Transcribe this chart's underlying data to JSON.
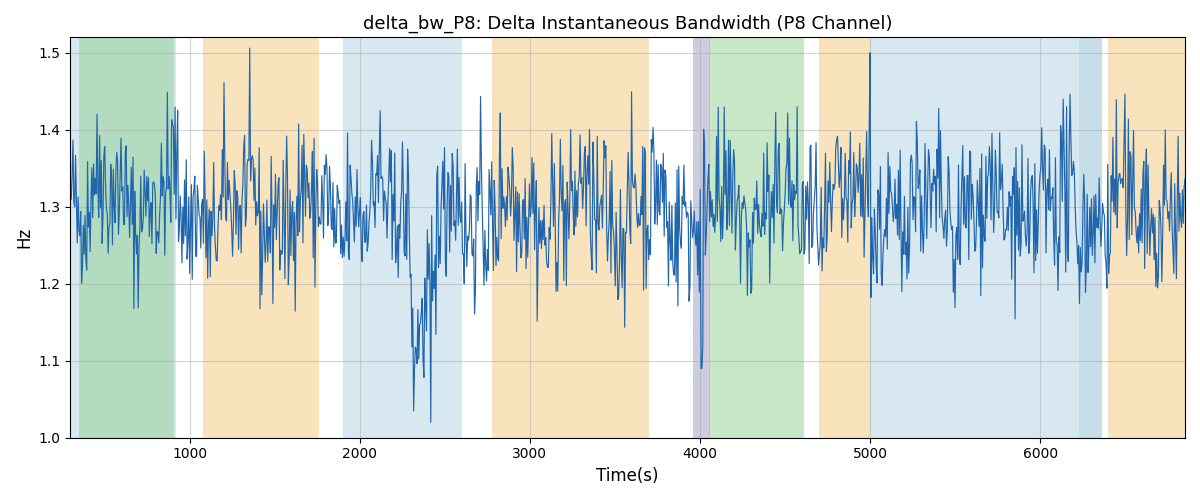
{
  "title": "delta_bw_P8: Delta Instantaneous Bandwidth (P8 Channel)",
  "xlabel": "Time(s)",
  "ylabel": "Hz",
  "xlim": [
    300,
    6850
  ],
  "ylim": [
    1.0,
    1.52
  ],
  "line_color": "#2166ac",
  "line_width": 0.85,
  "bg_bands": [
    {
      "xmin": 300,
      "xmax": 920,
      "color": "#a8cce0",
      "alpha": 0.45
    },
    {
      "xmin": 350,
      "xmax": 910,
      "color": "#90d090",
      "alpha": 0.5
    },
    {
      "xmin": 1080,
      "xmax": 1760,
      "color": "#f5c87a",
      "alpha": 0.5
    },
    {
      "xmin": 1900,
      "xmax": 2600,
      "color": "#a8cce0",
      "alpha": 0.45
    },
    {
      "xmin": 2600,
      "xmax": 2680,
      "color": "#ffffff",
      "alpha": 0.0
    },
    {
      "xmin": 2780,
      "xmax": 3700,
      "color": "#f5c87a",
      "alpha": 0.5
    },
    {
      "xmin": 3960,
      "xmax": 4060,
      "color": "#9090b8",
      "alpha": 0.45
    },
    {
      "xmin": 4050,
      "xmax": 4610,
      "color": "#90d090",
      "alpha": 0.5
    },
    {
      "xmin": 4700,
      "xmax": 5000,
      "color": "#f5c87a",
      "alpha": 0.5
    },
    {
      "xmin": 5000,
      "xmax": 6230,
      "color": "#a8cce0",
      "alpha": 0.45
    },
    {
      "xmin": 6230,
      "xmax": 6360,
      "color": "#a8cce0",
      "alpha": 0.65
    },
    {
      "xmin": 6400,
      "xmax": 6850,
      "color": "#f5c87a",
      "alpha": 0.5
    }
  ],
  "seed": 42,
  "n_points": 1300,
  "base_value": 1.295,
  "noise_std": 0.048,
  "yticks": [
    1.0,
    1.1,
    1.2,
    1.3,
    1.4,
    1.5
  ],
  "xticks": [
    1000,
    2000,
    3000,
    4000,
    5000,
    6000
  ],
  "grid_color": "#aaaaaa",
  "grid_alpha": 0.5
}
